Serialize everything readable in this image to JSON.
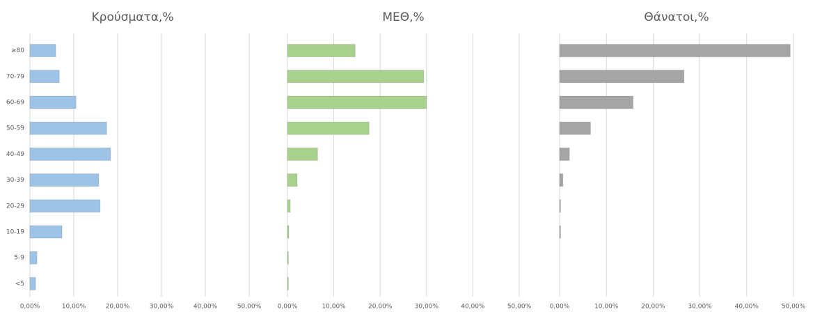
{
  "chart_data": [
    {
      "type": "bar",
      "orientation": "horizontal",
      "title": "Κρούσματα,%",
      "color": "#9dc3e6",
      "grid": true,
      "categories": [
        "≥80",
        "70-79",
        "60-69",
        "50-59",
        "40-49",
        "30-39",
        "20-29",
        "10-19",
        "5-9",
        "<5"
      ],
      "values": [
        5.9,
        6.7,
        10.5,
        17.5,
        18.4,
        15.7,
        16.0,
        7.3,
        1.6,
        1.3
      ],
      "xlim": [
        0,
        50
      ],
      "xticks": [
        {
          "value": 0,
          "label": "0,00%"
        },
        {
          "value": 10,
          "label": "10,00%"
        },
        {
          "value": 20,
          "label": "20,00%"
        },
        {
          "value": 30,
          "label": "30,00%"
        },
        {
          "value": 40,
          "label": "40,00%"
        },
        {
          "value": 50,
          "label": "50,00%"
        }
      ]
    },
    {
      "type": "bar",
      "orientation": "horizontal",
      "title": "ΜΕΘ,%",
      "color": "#a9d18e",
      "grid": true,
      "values": [
        14.6,
        29.4,
        30.0,
        17.6,
        6.5,
        2.1,
        0.6,
        0.3,
        0.2,
        0.2
      ],
      "xlim": [
        0,
        50
      ],
      "xticks": [
        {
          "value": 0,
          "label": "0,00%"
        },
        {
          "value": 10,
          "label": "10,00%"
        },
        {
          "value": 20,
          "label": "20,00%"
        },
        {
          "value": 30,
          "label": "30,00%"
        },
        {
          "value": 40,
          "label": "40,00%"
        },
        {
          "value": 50,
          "label": "50,00%"
        }
      ]
    },
    {
      "type": "bar",
      "orientation": "horizontal",
      "title": "Θάνατοι,%",
      "color": "#a5a5a5",
      "grid": true,
      "values": [
        49.3,
        26.6,
        15.7,
        6.6,
        2.1,
        0.7,
        0.2,
        0.2,
        0,
        0
      ],
      "xlim": [
        0,
        50
      ],
      "xticks": [
        {
          "value": 0,
          "label": "0,00%"
        },
        {
          "value": 10,
          "label": "10,00%"
        },
        {
          "value": 20,
          "label": "20,00%"
        },
        {
          "value": 30,
          "label": "30,00%"
        },
        {
          "value": 40,
          "label": "40,00%"
        },
        {
          "value": 50,
          "label": "50,00%"
        }
      ]
    }
  ]
}
